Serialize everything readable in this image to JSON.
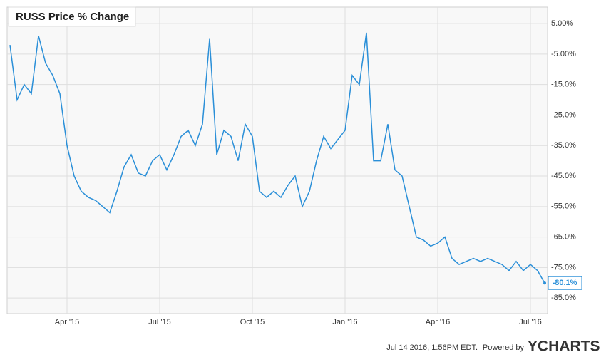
{
  "chart_data": {
    "type": "line",
    "title": "RUSS Price % Change",
    "categories": [
      null,
      null,
      null,
      null,
      null,
      null,
      null,
      null,
      "Apr '15",
      null,
      null,
      null,
      null,
      null,
      null,
      null,
      null,
      null,
      null,
      null,
      null,
      "Jul '15",
      null,
      null,
      null,
      null,
      null,
      null,
      null,
      null,
      null,
      null,
      null,
      null,
      "Oct '15",
      null,
      null,
      null,
      null,
      null,
      null,
      null,
      null,
      null,
      null,
      null,
      null,
      "Jan '16",
      null,
      null,
      null,
      null,
      null,
      null,
      null,
      null,
      null,
      null,
      null,
      null,
      "Apr '16",
      null,
      null,
      null,
      null,
      null,
      null,
      null,
      null,
      null,
      null,
      null,
      null,
      "Jul '16",
      null,
      null
    ],
    "series": [
      {
        "name": "RUSS",
        "color": "#2a8fd8",
        "values": [
          -2,
          -20,
          -15,
          -18,
          1,
          -8,
          -12,
          -18,
          -35,
          -45,
          -50,
          -52,
          -53,
          -55,
          -57,
          -50,
          -42,
          -38,
          -44,
          -45,
          -40,
          -38,
          -43,
          -38,
          -32,
          -30,
          -35,
          -28,
          0,
          -38,
          -30,
          -32,
          -40,
          -28,
          -32,
          -50,
          -52,
          -50,
          -52,
          -48,
          -45,
          -55,
          -50,
          -40,
          -32,
          -36,
          -33,
          -30,
          -12,
          -15,
          2,
          -40,
          -40,
          -28,
          -43,
          -45,
          -55,
          -65,
          -66,
          -68,
          -67,
          -65,
          -72,
          -74,
          -73,
          -72,
          -73,
          -72,
          -73,
          -74,
          -76,
          -73,
          -76,
          -74,
          -76,
          -80.1
        ],
        "value_labels": [
          null,
          null,
          null,
          null,
          null,
          null,
          null,
          null,
          null,
          null,
          null,
          null,
          null,
          null,
          null,
          null,
          null,
          null,
          null,
          null,
          null,
          null,
          null,
          null,
          null,
          null,
          null,
          null,
          null,
          null,
          null,
          null,
          null,
          null,
          null,
          null,
          null,
          null,
          null,
          null,
          null,
          null,
          null,
          null,
          null,
          null,
          null,
          null,
          null,
          null,
          null,
          null,
          null,
          null,
          null,
          null,
          null,
          null,
          null,
          null,
          null,
          null,
          null,
          null,
          null,
          null,
          null,
          null,
          null,
          null,
          null,
          null,
          null,
          null,
          null,
          "-80.1%"
        ]
      }
    ],
    "ylim": [
      -90.1,
      10.4
    ],
    "yticks": [
      {
        "value": 5,
        "label": "5.00%"
      },
      {
        "value": -5,
        "label": "-5.00%"
      },
      {
        "value": -15,
        "label": "-15.0%"
      },
      {
        "value": -25,
        "label": "-25.0%"
      },
      {
        "value": -35,
        "label": "-35.0%"
      },
      {
        "value": -45,
        "label": "-45.0%"
      },
      {
        "value": -55,
        "label": "-55.0%"
      },
      {
        "value": -65,
        "label": "-65.0%"
      },
      {
        "value": -75,
        "label": "-75.0%"
      },
      {
        "value": -85,
        "label": "-85.0%"
      }
    ],
    "grid": true,
    "footer": {
      "timestamp": "Jul 14 2016, 1:56PM EDT.",
      "powered_by": "Powered by",
      "brand": "YCHARTS"
    }
  }
}
